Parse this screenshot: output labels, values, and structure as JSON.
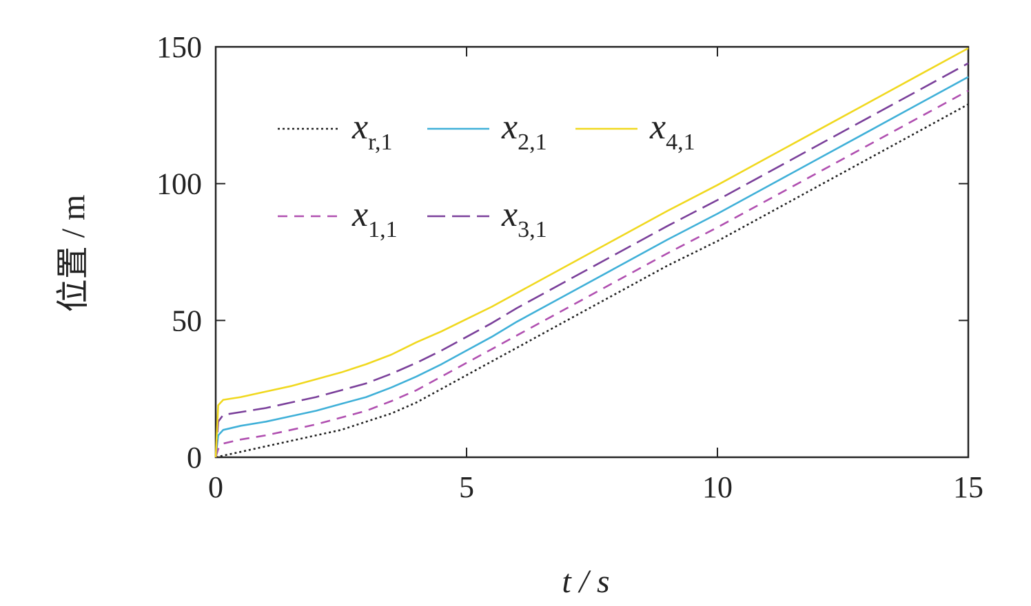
{
  "chart_data": {
    "type": "line",
    "xlabel": "t / s",
    "ylabel": "位置 / m",
    "xlim": [
      0,
      15
    ],
    "ylim": [
      0,
      150
    ],
    "xticks": [
      0,
      5,
      10,
      15
    ],
    "yticks": [
      0,
      50,
      100,
      150
    ],
    "legend_placement": "upper-left, inside, two rows",
    "grid": false,
    "series": [
      {
        "name": "x_{r,1}",
        "label_main": "x",
        "label_sub": "r,1",
        "color": "#222222",
        "dash": "3,4",
        "x": [
          0,
          0.5,
          1,
          1.5,
          2,
          2.5,
          3,
          3.5,
          4,
          4.5,
          5,
          5.5,
          6,
          7,
          8,
          9,
          10,
          11,
          12,
          13,
          14,
          15
        ],
        "y": [
          0,
          2,
          4,
          6,
          8,
          10,
          13,
          16,
          20,
          25,
          30,
          35,
          40,
          50,
          60,
          70,
          79,
          89,
          99,
          109,
          119,
          129
        ]
      },
      {
        "name": "x_{1,1}",
        "label_main": "x",
        "label_sub": "1,1",
        "color": "#b04fb0",
        "dash": "14,10",
        "x": [
          0,
          0.05,
          0.15,
          0.5,
          1,
          1.5,
          2,
          2.5,
          3,
          3.5,
          4,
          4.5,
          5,
          5.5,
          6,
          7,
          8,
          9,
          10,
          11,
          12,
          13,
          14,
          15
        ],
        "y": [
          0,
          3,
          5,
          6.5,
          8,
          10,
          12,
          14.5,
          17,
          20.5,
          24.5,
          29.5,
          34.5,
          39.5,
          44.5,
          54.5,
          64.5,
          74.5,
          84,
          94,
          104,
          114,
          124,
          134
        ]
      },
      {
        "name": "x_{2,1}",
        "label_main": "x",
        "label_sub": "2,1",
        "color": "#3fb0d8",
        "dash": "",
        "x": [
          0,
          0.05,
          0.15,
          0.5,
          1,
          1.5,
          2,
          2.5,
          3,
          3.5,
          4,
          4.5,
          5,
          5.5,
          6,
          7,
          8,
          9,
          10,
          11,
          12,
          13,
          14,
          15
        ],
        "y": [
          0,
          8,
          10,
          11.5,
          13,
          15,
          17,
          19.5,
          22,
          25.5,
          29.5,
          34,
          39,
          44,
          49.5,
          59.5,
          69.5,
          79.5,
          89,
          99,
          109,
          119,
          129,
          139
        ]
      },
      {
        "name": "x_{3,1}",
        "label_main": "x",
        "label_sub": "3,1",
        "color": "#7a3f9a",
        "dash": "26,10",
        "x": [
          0,
          0.05,
          0.15,
          0.5,
          1,
          1.5,
          2,
          2.5,
          3,
          3.5,
          4,
          4.5,
          5,
          5.5,
          6,
          7,
          8,
          9,
          10,
          11,
          12,
          13,
          14,
          15
        ],
        "y": [
          0,
          13,
          15.5,
          16.5,
          18,
          20,
          22,
          24.5,
          27,
          30.5,
          34.5,
          39,
          44,
          49,
          54.5,
          64.5,
          74.5,
          84.5,
          94,
          104,
          114,
          124,
          134,
          144
        ]
      },
      {
        "name": "x_{4,1}",
        "label_main": "x",
        "label_sub": "4,1",
        "color": "#f0d81e",
        "dash": "",
        "x": [
          0,
          0.05,
          0.15,
          0.5,
          1,
          1.5,
          2,
          2.5,
          3,
          3.5,
          4,
          4.5,
          5,
          5.5,
          6,
          7,
          8,
          9,
          10,
          11,
          12,
          13,
          14,
          15
        ],
        "y": [
          0,
          19,
          21,
          22,
          24,
          26,
          28.5,
          31,
          34,
          37.5,
          42,
          46,
          50.5,
          55,
          60,
          70,
          80,
          90,
          99.5,
          109.5,
          119.5,
          129.5,
          139.5,
          149.5
        ]
      }
    ],
    "legend_order": [
      0,
      2,
      4,
      1,
      3
    ]
  }
}
